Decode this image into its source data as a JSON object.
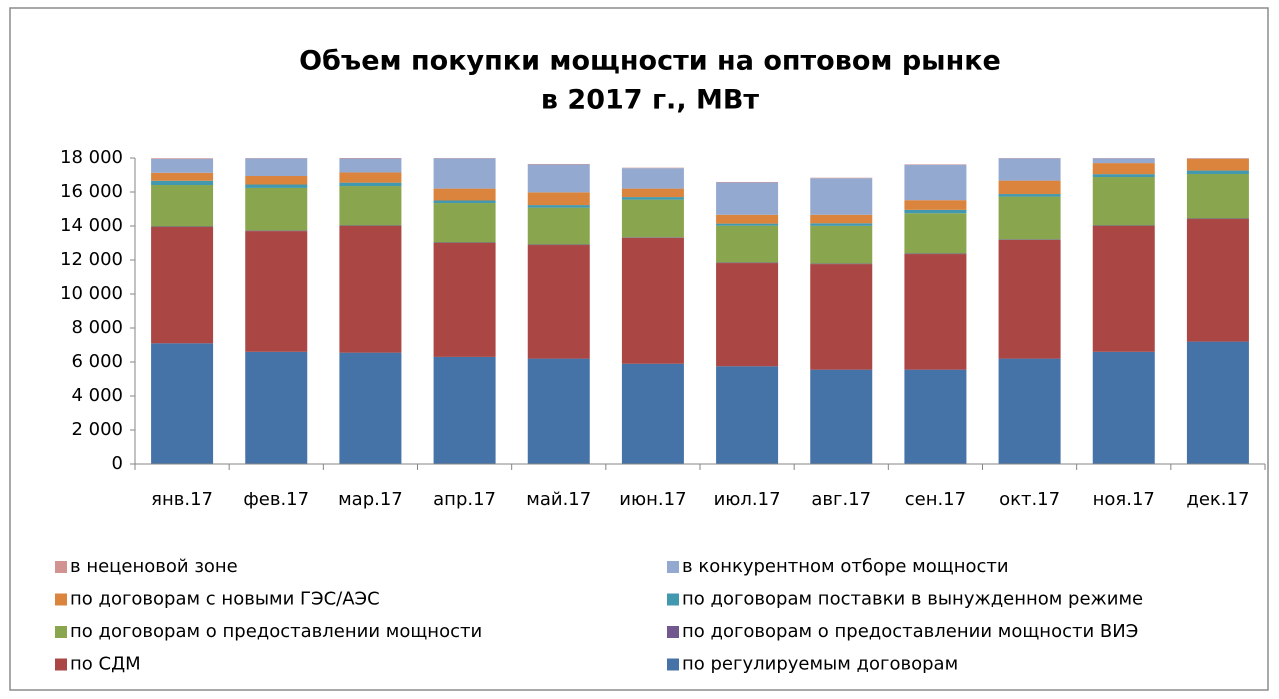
{
  "chart_data": {
    "type": "stacked_bar",
    "title": [
      "Объем покупки мощности на оптовом рынке",
      "в 2017 г., МВт"
    ],
    "categories": [
      "янв.17",
      "фев.17",
      "мар.17",
      "апр.17",
      "май.17",
      "июн.17",
      "июл.17",
      "авг.17",
      "сен.17",
      "окт.17",
      "ноя.17",
      "дек.17"
    ],
    "series": [
      {
        "name": "по регулируемым договорам",
        "color": "#4572a7",
        "values": [
          7100,
          6600,
          6550,
          6300,
          6200,
          5900,
          5750,
          5550,
          5550,
          6200,
          6600,
          7200
        ]
      },
      {
        "name": "по СДМ",
        "color": "#aa4643",
        "values": [
          6840,
          7100,
          7450,
          6700,
          6680,
          7400,
          6070,
          6210,
          6800,
          6980,
          7400,
          7210
        ]
      },
      {
        "name": "по договорам о предоставлении мощности ВИЭ",
        "color": "#71588f",
        "values": [
          30,
          30,
          30,
          30,
          30,
          30,
          30,
          30,
          30,
          30,
          30,
          30
        ]
      },
      {
        "name": "по договорам о предоставлении мощности",
        "color": "#89a54e",
        "values": [
          2440,
          2510,
          2320,
          2320,
          2170,
          2220,
          2170,
          2220,
          2370,
          2520,
          2850,
          2620
        ]
      },
      {
        "name": "по договорам поставки в вынужденном режиме",
        "color": "#4198af",
        "values": [
          250,
          200,
          200,
          150,
          150,
          150,
          120,
          150,
          200,
          150,
          170,
          200
        ]
      },
      {
        "name": "по договорам с новыми ГЭС/АЭС",
        "color": "#db843d",
        "values": [
          470,
          500,
          600,
          700,
          750,
          500,
          520,
          500,
          570,
          790,
          650,
          700
        ]
      },
      {
        "name": "в конкурентном отборе мощности",
        "color": "#93a9cf",
        "values": [
          820,
          1040,
          820,
          1780,
          1640,
          1200,
          1900,
          2150,
          2080,
          1310,
          280,
          20
        ]
      },
      {
        "name": "в неценовой зоне",
        "color": "#d19392",
        "values": [
          40,
          20,
          30,
          20,
          30,
          30,
          30,
          30,
          30,
          20,
          20,
          20
        ]
      }
    ],
    "ylim": [
      0,
      18000
    ],
    "yticks": [
      0,
      {
        "value": 2000,
        "label": "2 000"
      },
      {
        "value": 4000,
        "label": "4 000"
      },
      {
        "value": 6000,
        "label": "6 000"
      },
      {
        "value": 8000,
        "label": "8 000"
      },
      {
        "value": 10000,
        "label": "10 000"
      },
      {
        "value": 12000,
        "label": "12 000"
      },
      {
        "value": 14000,
        "label": "14 000"
      },
      {
        "value": 16000,
        "label": "16 000"
      },
      {
        "value": 18000,
        "label": "18 000"
      }
    ],
    "grid": false,
    "legend": "bottom"
  }
}
